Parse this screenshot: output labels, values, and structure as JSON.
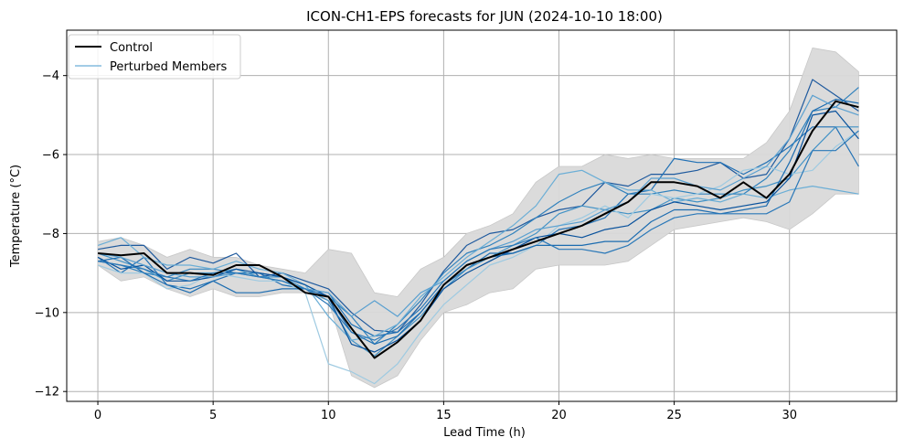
{
  "chart_data": {
    "type": "line",
    "title": "ICON-CH1-EPS forecasts for JUN (2024-10-10 18:00)",
    "xlabel": "Lead Time (h)",
    "ylabel": "Temperature (°C)",
    "xlim": [
      -1.35,
      34.65
    ],
    "ylim": [
      -12.25,
      -2.85
    ],
    "xticks": [
      0,
      5,
      10,
      15,
      20,
      25,
      30
    ],
    "yticks": [
      -12,
      -10,
      -8,
      -6,
      -4
    ],
    "grid": true,
    "legend": {
      "placement": "top-left",
      "entries": [
        "Control",
        "Perturbed Members"
      ]
    },
    "colors": {
      "control": "#000000",
      "members": [
        "#1f5a9e",
        "#2171b5",
        "#3182bd",
        "#4292c6",
        "#6baed6",
        "#9ecae1",
        "#08519c",
        "#1c6cb0",
        "#5aa0d0",
        "#2a78b8"
      ],
      "band": "#d9d9d9",
      "grid": "#b0b0b0"
    },
    "x": [
      0,
      1,
      2,
      3,
      4,
      5,
      6,
      7,
      8,
      9,
      10,
      11,
      12,
      13,
      14,
      15,
      16,
      17,
      18,
      19,
      20,
      21,
      22,
      23,
      24,
      25,
      26,
      27,
      28,
      29,
      30,
      31,
      32,
      33
    ],
    "band": {
      "lower": [
        -8.8,
        -9.2,
        -9.1,
        -9.4,
        -9.6,
        -9.4,
        -9.6,
        -9.6,
        -9.5,
        -9.5,
        -9.7,
        -11.6,
        -11.9,
        -11.6,
        -10.7,
        -10.0,
        -9.8,
        -9.5,
        -9.4,
        -8.9,
        -8.8,
        -8.8,
        -8.8,
        -8.7,
        -8.3,
        -7.9,
        -7.8,
        -7.7,
        -7.6,
        -7.7,
        -7.9,
        -7.5,
        -7.0,
        -7.0
      ],
      "upper": [
        -8.2,
        -8.1,
        -8.3,
        -8.6,
        -8.4,
        -8.6,
        -8.6,
        -8.8,
        -8.9,
        -9.0,
        -8.4,
        -8.5,
        -9.5,
        -9.6,
        -8.9,
        -8.6,
        -8.0,
        -7.8,
        -7.5,
        -6.7,
        -6.3,
        -6.3,
        -6.0,
        -6.1,
        -6.0,
        -6.1,
        -6.1,
        -6.1,
        -6.1,
        -5.7,
        -4.9,
        -3.3,
        -3.4,
        -3.9
      ]
    },
    "series": [
      {
        "name": "Control",
        "values": [
          -8.5,
          -8.55,
          -8.5,
          -9.0,
          -9.0,
          -9.05,
          -8.8,
          -8.8,
          -9.1,
          -9.5,
          -9.6,
          -10.4,
          -11.15,
          -10.75,
          -10.2,
          -9.3,
          -8.8,
          -8.6,
          -8.4,
          -8.2,
          -8.0,
          -7.8,
          -7.5,
          -7.2,
          -6.7,
          -6.7,
          -6.8,
          -7.1,
          -6.7,
          -7.1,
          -6.5,
          -5.4,
          -4.65,
          -4.8
        ]
      },
      {
        "values": [
          -8.4,
          -8.3,
          -8.3,
          -8.9,
          -8.6,
          -8.75,
          -8.5,
          -9.1,
          -9.0,
          -9.2,
          -9.4,
          -10.0,
          -10.45,
          -10.5,
          -9.8,
          -8.95,
          -8.3,
          -8.0,
          -7.9,
          -7.6,
          -7.4,
          -7.3,
          -6.7,
          -6.8,
          -6.5,
          -6.5,
          -6.4,
          -6.2,
          -6.6,
          -6.5,
          -5.6,
          -4.1,
          -4.5,
          -4.9
        ]
      },
      {
        "values": [
          -8.6,
          -9.0,
          -8.6,
          -9.3,
          -9.4,
          -9.2,
          -9.0,
          -9.0,
          -9.3,
          -9.4,
          -9.5,
          -10.3,
          -10.6,
          -10.5,
          -10.0,
          -9.3,
          -8.9,
          -8.5,
          -8.5,
          -8.3,
          -7.9,
          -7.8,
          -7.6,
          -7.0,
          -6.9,
          -6.1,
          -6.2,
          -6.2,
          -6.5,
          -6.2,
          -5.8,
          -5.3,
          -5.3,
          -6.3
        ]
      },
      {
        "values": [
          -8.7,
          -8.8,
          -9.0,
          -9.1,
          -8.9,
          -8.9,
          -9.0,
          -9.0,
          -9.1,
          -9.3,
          -9.6,
          -10.1,
          -10.8,
          -10.3,
          -9.7,
          -9.0,
          -8.5,
          -8.3,
          -8.0,
          -7.6,
          -7.2,
          -6.9,
          -6.7,
          -7.0,
          -7.0,
          -6.9,
          -7.0,
          -7.0,
          -7.0,
          -6.6,
          -5.9,
          -4.9,
          -4.8,
          -4.3
        ]
      },
      {
        "values": [
          -8.5,
          -8.7,
          -8.9,
          -9.2,
          -9.0,
          -9.0,
          -8.9,
          -9.1,
          -9.1,
          -9.4,
          -9.7,
          -10.7,
          -11.1,
          -10.6,
          -10.1,
          -9.4,
          -8.9,
          -8.6,
          -8.3,
          -8.0,
          -7.5,
          -7.3,
          -7.4,
          -7.5,
          -7.4,
          -7.1,
          -7.2,
          -7.1,
          -6.9,
          -6.8,
          -6.6,
          -5.9,
          -5.3,
          -5.3
        ]
      },
      {
        "values": [
          -8.3,
          -8.1,
          -8.6,
          -8.8,
          -8.8,
          -8.9,
          -8.7,
          -8.9,
          -9.0,
          -9.3,
          -10.1,
          -10.7,
          -10.6,
          -10.3,
          -9.6,
          -9.1,
          -8.6,
          -8.2,
          -7.8,
          -7.3,
          -6.5,
          -6.4,
          -6.7,
          -6.9,
          -6.9,
          -7.2,
          -7.1,
          -7.2,
          -7.0,
          -7.1,
          -6.9,
          -6.8,
          -6.9,
          -7.0
        ]
      },
      {
        "values": [
          -8.8,
          -9.0,
          -9.0,
          -9.4,
          -9.3,
          -9.0,
          -9.1,
          -9.2,
          -9.2,
          -9.5,
          -11.3,
          -11.5,
          -11.8,
          -11.3,
          -10.5,
          -9.8,
          -9.3,
          -8.8,
          -8.6,
          -8.3,
          -7.8,
          -7.6,
          -7.3,
          -7.6,
          -7.0,
          -7.1,
          -7.0,
          -6.8,
          -6.4,
          -6.3,
          -6.5,
          -6.4,
          -5.8,
          -5.4
        ]
      },
      {
        "values": [
          -8.6,
          -8.9,
          -8.8,
          -9.2,
          -9.2,
          -9.1,
          -8.9,
          -9.0,
          -9.1,
          -9.3,
          -9.6,
          -10.8,
          -11.0,
          -10.7,
          -10.2,
          -9.4,
          -9.0,
          -8.7,
          -8.4,
          -8.1,
          -8.0,
          -8.1,
          -7.9,
          -7.8,
          -7.4,
          -7.2,
          -7.3,
          -7.4,
          -7.3,
          -7.2,
          -6.6,
          -5.0,
          -4.9,
          -5.6
        ]
      },
      {
        "values": [
          -8.7,
          -8.6,
          -9.0,
          -9.3,
          -9.5,
          -9.2,
          -9.5,
          -9.5,
          -9.4,
          -9.4,
          -9.6,
          -10.5,
          -10.8,
          -10.6,
          -10.0,
          -9.3,
          -8.8,
          -8.6,
          -8.5,
          -8.3,
          -8.3,
          -8.3,
          -8.2,
          -8.2,
          -7.7,
          -7.4,
          -7.4,
          -7.5,
          -7.4,
          -7.3,
          -6.2,
          -4.9,
          -4.6,
          -4.7
        ]
      },
      {
        "values": [
          -8.5,
          -8.6,
          -8.8,
          -9.0,
          -9.1,
          -9.1,
          -9.0,
          -9.1,
          -9.2,
          -9.4,
          -9.5,
          -10.1,
          -9.7,
          -10.1,
          -9.5,
          -9.2,
          -8.7,
          -8.4,
          -8.2,
          -7.9,
          -7.8,
          -7.7,
          -7.4,
          -7.2,
          -6.6,
          -6.6,
          -6.8,
          -6.9,
          -6.6,
          -6.3,
          -5.6,
          -4.5,
          -4.8,
          -5.0
        ]
      },
      {
        "values": [
          -8.7,
          -8.8,
          -8.9,
          -9.1,
          -9.2,
          -9.0,
          -9.0,
          -9.1,
          -9.2,
          -9.4,
          -9.8,
          -10.5,
          -10.7,
          -10.4,
          -9.9,
          -9.2,
          -8.7,
          -8.4,
          -8.3,
          -8.1,
          -8.4,
          -8.4,
          -8.5,
          -8.3,
          -7.9,
          -7.6,
          -7.5,
          -7.5,
          -7.5,
          -7.5,
          -7.2,
          -5.9,
          -5.9,
          -5.4
        ]
      }
    ]
  }
}
